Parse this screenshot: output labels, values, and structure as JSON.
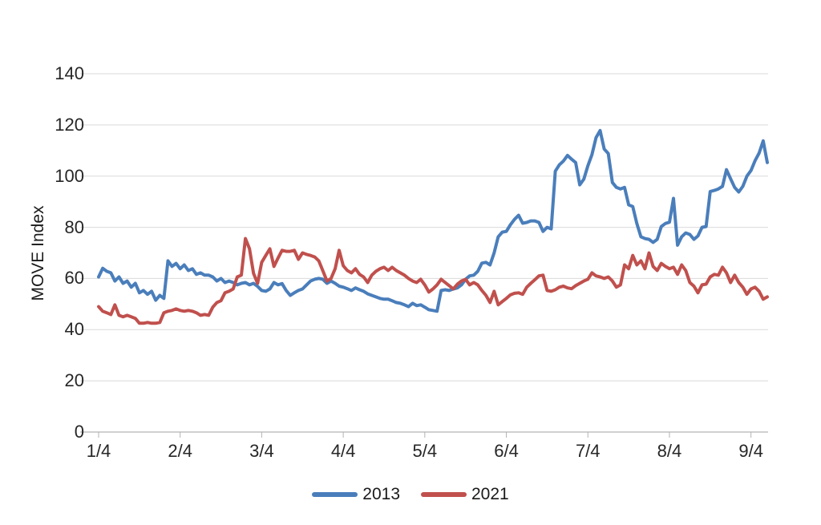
{
  "page": {
    "background": "#ffffff"
  },
  "chart_data": {
    "type": "line",
    "title": "",
    "grid": true,
    "legend_position": "bottom",
    "y_axis": {
      "label": "MOVE Index",
      "ticks": [
        0,
        20,
        40,
        60,
        80,
        100,
        120,
        140
      ],
      "range": [
        0,
        140
      ]
    },
    "x_axis": {
      "ticks": [
        "1/4",
        "2/4",
        "3/4",
        "4/4",
        "5/4",
        "6/4",
        "7/4",
        "8/4",
        "9/4"
      ],
      "tick_indices": [
        0,
        20,
        40,
        60,
        80,
        100,
        120,
        140,
        160
      ]
    },
    "series": [
      {
        "name": "2013",
        "color": "#4A7EBB",
        "values": [
          60.6,
          64.0,
          62.8,
          62.2,
          59.0,
          60.6,
          58.1,
          59.0,
          56.6,
          58.1,
          54.4,
          55.3,
          53.8,
          55.0,
          51.5,
          53.4,
          52.2,
          66.9,
          64.7,
          65.9,
          63.8,
          65.3,
          63.1,
          63.8,
          61.6,
          62.2,
          61.3,
          61.3,
          60.6,
          59.0,
          60.0,
          58.4,
          59.0,
          58.4,
          57.5,
          58.1,
          58.4,
          57.5,
          58.1,
          56.9,
          55.3,
          55.0,
          55.9,
          58.4,
          57.5,
          58.0,
          55.3,
          53.4,
          54.4,
          55.3,
          55.9,
          57.5,
          59.0,
          59.7,
          60.0,
          59.7,
          58.1,
          59.0,
          58.1,
          57.0,
          56.6,
          56.0,
          55.3,
          56.3,
          55.6,
          55.0,
          54.0,
          53.4,
          52.8,
          52.2,
          51.9,
          51.9,
          51.3,
          50.6,
          50.3,
          49.7,
          49.0,
          50.3,
          49.4,
          49.7,
          48.8,
          47.8,
          47.5,
          47.2,
          55.3,
          55.6,
          55.3,
          55.9,
          56.3,
          57.5,
          59.7,
          61.0,
          61.3,
          62.8,
          66.0,
          66.3,
          65.3,
          70.0,
          76.3,
          78.1,
          78.4,
          81.0,
          83.1,
          84.7,
          81.6,
          81.9,
          82.5,
          82.5,
          81.9,
          78.4,
          80.0,
          79.4,
          101.9,
          104.4,
          105.9,
          108.1,
          106.6,
          105.3,
          96.6,
          98.8,
          104.0,
          108.4,
          115.0,
          117.8,
          110.6,
          108.8,
          97.5,
          95.6,
          95.0,
          95.6,
          88.8,
          88.1,
          81.5,
          76.3,
          75.6,
          75.3,
          74.1,
          75.3,
          80.3,
          81.5,
          82.0,
          91.3,
          73.0,
          76.3,
          77.8,
          77.2,
          75.3,
          76.6,
          80.0,
          80.3,
          94.0,
          94.4,
          95.0,
          96.0,
          102.5,
          99.0,
          95.6,
          93.8,
          96.0,
          100.0,
          102.2,
          106.0,
          109.0,
          113.8,
          105.3
        ]
      },
      {
        "name": "2021",
        "color": "#C0504D",
        "values": [
          49.0,
          47.2,
          46.6,
          45.9,
          49.7,
          45.6,
          45.0,
          45.6,
          45.0,
          44.4,
          42.5,
          42.5,
          42.8,
          42.5,
          42.5,
          42.8,
          46.6,
          47.2,
          47.5,
          48.1,
          47.5,
          47.2,
          47.5,
          47.2,
          46.6,
          45.6,
          45.9,
          45.6,
          48.8,
          50.6,
          51.3,
          54.4,
          55.0,
          55.9,
          60.6,
          61.3,
          75.6,
          71.6,
          62.0,
          58.1,
          66.3,
          69.0,
          71.6,
          64.7,
          68.0,
          71.0,
          70.6,
          70.6,
          71.0,
          67.5,
          70.0,
          69.4,
          69.0,
          68.4,
          66.9,
          63.0,
          59.0,
          60.0,
          63.8,
          71.0,
          65.0,
          63.1,
          62.2,
          63.8,
          61.6,
          60.6,
          58.4,
          61.3,
          62.8,
          63.8,
          64.4,
          63.1,
          64.4,
          63.1,
          62.2,
          61.3,
          60.0,
          59.0,
          58.4,
          59.7,
          57.5,
          54.7,
          55.9,
          57.5,
          59.7,
          58.4,
          57.2,
          55.9,
          57.8,
          59.0,
          59.7,
          57.5,
          58.4,
          57.5,
          55.3,
          53.4,
          50.6,
          55.0,
          49.7,
          51.0,
          52.2,
          53.6,
          54.2,
          54.4,
          53.8,
          56.6,
          58.1,
          59.5,
          61.0,
          61.3,
          55.3,
          55.0,
          55.6,
          56.6,
          57.0,
          56.3,
          56.0,
          57.2,
          58.1,
          59.0,
          59.7,
          62.2,
          61.0,
          60.6,
          60.0,
          60.6,
          59.0,
          56.6,
          57.5,
          65.3,
          63.8,
          69.0,
          65.3,
          66.9,
          63.8,
          70.0,
          64.7,
          63.1,
          65.9,
          64.7,
          63.8,
          64.4,
          61.6,
          65.3,
          63.1,
          58.4,
          57.0,
          54.4,
          57.5,
          57.8,
          60.6,
          61.6,
          61.3,
          64.4,
          62.2,
          58.4,
          61.3,
          58.4,
          56.6,
          53.8,
          55.9,
          56.6,
          55.0,
          51.9,
          52.8
        ]
      }
    ]
  }
}
